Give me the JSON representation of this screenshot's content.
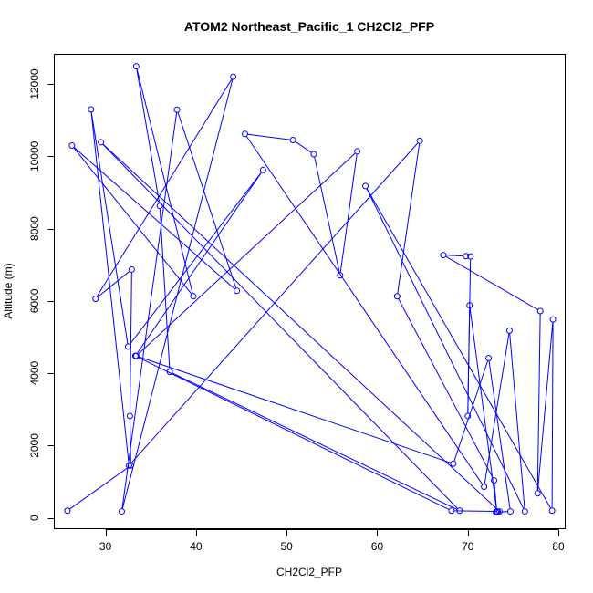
{
  "chart_data": {
    "type": "line",
    "title": "ATOM2 Northeast_Pacific_1 CH2Cl2_PFP",
    "xlabel": "CH2Cl2_PFP",
    "ylabel": "Altitude (m)",
    "xlim": [
      24.4,
      80.8
    ],
    "ylim": [
      -310,
      12810
    ],
    "x_ticks": [
      30,
      40,
      50,
      60,
      70,
      80
    ],
    "y_ticks": [
      0,
      2000,
      4000,
      6000,
      8000,
      10000,
      12000
    ],
    "grid": false,
    "legend": "none",
    "series": [
      {
        "color": "#0000ff",
        "markers": "open-circle",
        "x": [
          25.8,
          32.8,
          32.7,
          32.9,
          28.9,
          44.1,
          31.8,
          37.9,
          44.5,
          26.3,
          39.7,
          33.4,
          36.0,
          37.1,
          69.1,
          29.5,
          73.5,
          68.2,
          33.3,
          47.4,
          32.5,
          28.4,
          32.6,
          64.7,
          62.2,
          72.9,
          73.2,
          70.2,
          70.0,
          70.3,
          69.8,
          67.3,
          78.0,
          77.7,
          79.4,
          79.3,
          58.7,
          76.3,
          74.6,
          71.8,
          45.4,
          50.7,
          53.0,
          55.9,
          57.8,
          33.4,
          68.4,
          72.3,
          74.7,
          73.1,
          73.3
        ],
        "y": [
          200,
          1450,
          2820,
          6870,
          6060,
          12200,
          180,
          11290,
          6280,
          10300,
          6130,
          12490,
          8630,
          4040,
          200,
          10390,
          180,
          200,
          4480,
          9620,
          4740,
          11300,
          1450,
          10430,
          6130,
          1040,
          180,
          5880,
          2820,
          7230,
          7240,
          7270,
          5720,
          680,
          5490,
          200,
          9180,
          180,
          5180,
          860,
          10620,
          10450,
          10060,
          6710,
          10140,
          4480,
          1500,
          4420,
          180,
          160,
          170
        ]
      }
    ]
  }
}
